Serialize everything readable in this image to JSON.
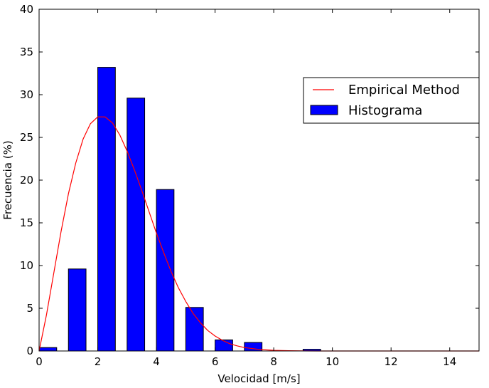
{
  "chart_data": {
    "type": "bar",
    "xlabel": "Velocidad [m/s]",
    "ylabel": "Frecuencia (%)",
    "xlim": [
      0,
      15
    ],
    "ylim": [
      0,
      40
    ],
    "x_ticks": [
      0,
      2,
      4,
      6,
      8,
      10,
      12,
      14
    ],
    "y_ticks": [
      0,
      5,
      10,
      15,
      20,
      25,
      30,
      35,
      40
    ],
    "grid": false,
    "legend_position": "upper-right",
    "series": [
      {
        "name": "Histograma",
        "kind": "bar",
        "color": "#0000ff",
        "bar_width": 0.6,
        "x": [
          0.3,
          1.3,
          2.3,
          3.3,
          4.3,
          5.3,
          6.3,
          7.3,
          8.3,
          9.3
        ],
        "values": [
          0.4,
          9.6,
          33.2,
          29.6,
          18.9,
          5.1,
          1.3,
          1.0,
          0.0,
          0.2
        ]
      },
      {
        "name": "Empirical Method",
        "kind": "line",
        "color": "#ff0000",
        "x": [
          0,
          0.25,
          0.5,
          0.75,
          1.0,
          1.25,
          1.5,
          1.75,
          2.0,
          2.25,
          2.5,
          2.75,
          3.0,
          3.25,
          3.5,
          3.75,
          4.0,
          4.25,
          4.5,
          4.75,
          5.0,
          5.25,
          5.5,
          5.75,
          6.0,
          6.25,
          6.5,
          6.75,
          7.0,
          7.5,
          8.0,
          8.5,
          9.0,
          9.5,
          10.0,
          11.0,
          12.0,
          13.0,
          14.0,
          15.0
        ],
        "values": [
          0.0,
          4.2,
          9.1,
          14.0,
          18.4,
          22.0,
          24.8,
          26.6,
          27.4,
          27.4,
          26.7,
          25.3,
          23.4,
          21.2,
          18.8,
          16.3,
          13.8,
          11.5,
          9.3,
          7.4,
          5.8,
          4.4,
          3.3,
          2.4,
          1.75,
          1.25,
          0.85,
          0.6,
          0.4,
          0.18,
          0.08,
          0.03,
          0.01,
          0.0,
          0.0,
          0.0,
          0.0,
          0.0,
          0.0,
          0.0
        ]
      }
    ]
  }
}
